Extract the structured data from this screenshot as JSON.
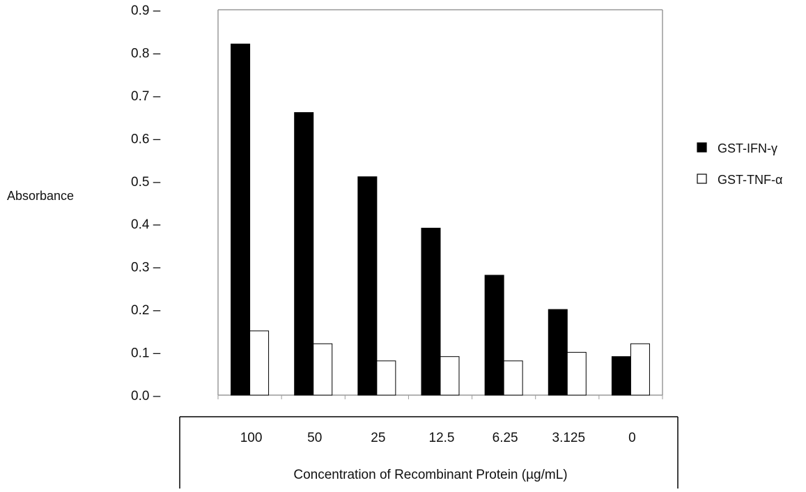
{
  "chart_data": {
    "type": "bar",
    "title": "",
    "ylabel": "Absorbance",
    "xlabel": "Concentration of Recombinant Protein (µg/mL)",
    "categories": [
      "100",
      "50",
      "25",
      "12.5",
      "6.25",
      "3.125",
      "0"
    ],
    "y_ticks": [
      "0.0",
      "0.1",
      "0.2",
      "0.3",
      "0.4",
      "0.5",
      "0.6",
      "0.7",
      "0.8",
      "0.9"
    ],
    "ylim": [
      0,
      0.9
    ],
    "grid": false,
    "legend_position": "right",
    "series": [
      {
        "name": "GST-IFN-γ",
        "color": "#000000",
        "values": [
          0.82,
          0.66,
          0.51,
          0.39,
          0.28,
          0.2,
          0.09
        ]
      },
      {
        "name": "GST-TNF-α",
        "color": "#ffffff",
        "values": [
          0.15,
          0.12,
          0.08,
          0.09,
          0.08,
          0.1,
          0.12
        ]
      }
    ]
  }
}
